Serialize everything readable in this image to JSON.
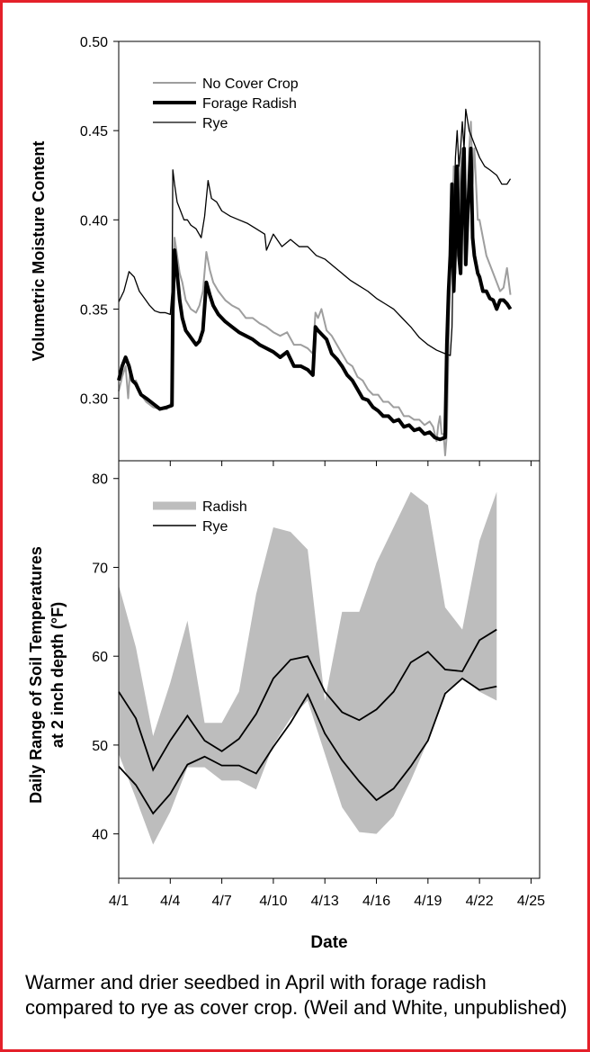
{
  "caption": "Warmer and drier seedbed in April with forage radish compared to rye as cover crop. (Weil and White, unpublished)",
  "colors": {
    "frame": "#e4202a",
    "no_cover": "#9e9e9e",
    "radish_band": "#bdbdbd",
    "line": "#000000"
  },
  "chart_data": [
    {
      "type": "line",
      "xlabel": "Date",
      "ylabel": "Volumetric Moisture Content",
      "ylim": [
        0.265,
        0.5
      ],
      "xlim": [
        0,
        24.5
      ],
      "yticks": [
        "0.30",
        "0.35",
        "0.40",
        "0.45",
        "0.50"
      ],
      "legend": {
        "position": "top-left"
      },
      "grid": false,
      "series": [
        {
          "name": "No Cover Crop",
          "color": "#9e9e9e",
          "width": 2,
          "x": [
            0,
            0.2,
            0.4,
            0.55,
            0.65,
            0.8,
            1.0,
            1.3,
            1.6,
            2.0,
            2.4,
            2.8,
            3.1,
            3.15,
            3.25,
            3.4,
            3.55,
            3.7,
            3.9,
            4.2,
            4.5,
            4.7,
            4.9,
            5.1,
            5.3,
            5.5,
            5.8,
            6.2,
            6.6,
            7.0,
            7.4,
            7.8,
            8.2,
            8.6,
            9.0,
            9.4,
            9.8,
            10.2,
            10.6,
            11.0,
            11.3,
            11.45,
            11.6,
            11.8,
            12.1,
            12.4,
            12.7,
            13.0,
            13.3,
            13.6,
            13.9,
            14.2,
            14.5,
            14.8,
            15.1,
            15.4,
            15.7,
            16.0,
            16.3,
            16.6,
            16.9,
            17.2,
            17.5,
            17.8,
            18.1,
            18.3,
            18.5,
            18.6,
            18.7,
            18.8,
            18.9,
            18.95,
            19.0,
            19.1,
            19.2,
            19.3,
            19.4,
            19.5,
            19.6,
            19.7,
            19.8,
            19.9,
            20.0,
            20.1,
            20.2,
            20.3,
            20.4,
            20.5,
            20.6,
            20.7,
            20.8,
            20.9,
            21.0,
            21.2,
            21.4,
            21.6,
            21.8,
            22.0,
            22.2,
            22.4,
            22.6,
            22.8
          ],
          "y": [
            0.304,
            0.312,
            0.318,
            0.3,
            0.314,
            0.309,
            0.31,
            0.302,
            0.298,
            0.295,
            0.294,
            0.294,
            0.298,
            0.36,
            0.39,
            0.38,
            0.37,
            0.365,
            0.355,
            0.35,
            0.348,
            0.352,
            0.36,
            0.382,
            0.372,
            0.365,
            0.36,
            0.355,
            0.352,
            0.35,
            0.345,
            0.345,
            0.342,
            0.34,
            0.337,
            0.335,
            0.337,
            0.33,
            0.33,
            0.328,
            0.325,
            0.348,
            0.345,
            0.35,
            0.338,
            0.335,
            0.33,
            0.325,
            0.32,
            0.318,
            0.312,
            0.31,
            0.305,
            0.302,
            0.302,
            0.298,
            0.298,
            0.295,
            0.295,
            0.29,
            0.29,
            0.288,
            0.288,
            0.285,
            0.287,
            0.284,
            0.276,
            0.285,
            0.29,
            0.28,
            0.28,
            0.275,
            0.268,
            0.28,
            0.33,
            0.375,
            0.39,
            0.43,
            0.37,
            0.4,
            0.38,
            0.43,
            0.44,
            0.4,
            0.38,
            0.41,
            0.44,
            0.455,
            0.42,
            0.44,
            0.42,
            0.4,
            0.4,
            0.39,
            0.38,
            0.375,
            0.37,
            0.365,
            0.36,
            0.362,
            0.373,
            0.358
          ]
        },
        {
          "name": "Forage Radish",
          "color": "#000000",
          "width": 4,
          "x": [
            0,
            0.2,
            0.4,
            0.6,
            0.8,
            1.0,
            1.3,
            1.6,
            2.0,
            2.4,
            2.8,
            3.1,
            3.15,
            3.25,
            3.4,
            3.55,
            3.7,
            3.9,
            4.2,
            4.5,
            4.7,
            4.9,
            5.1,
            5.3,
            5.5,
            5.8,
            6.2,
            6.6,
            7.0,
            7.4,
            7.8,
            8.2,
            8.6,
            9.0,
            9.4,
            9.8,
            10.2,
            10.6,
            11.0,
            11.3,
            11.45,
            11.6,
            11.8,
            12.1,
            12.4,
            12.7,
            13.0,
            13.3,
            13.6,
            13.9,
            14.2,
            14.5,
            14.8,
            15.1,
            15.4,
            15.7,
            16.0,
            16.3,
            16.6,
            16.9,
            17.2,
            17.5,
            17.8,
            18.1,
            18.4,
            18.7,
            19.0,
            19.1,
            19.2,
            19.3,
            19.4,
            19.5,
            19.6,
            19.7,
            19.8,
            19.9,
            20.0,
            20.1,
            20.2,
            20.3,
            20.4,
            20.5,
            20.6,
            20.7,
            20.8,
            20.9,
            21.0,
            21.2,
            21.4,
            21.6,
            21.8,
            22.0,
            22.2,
            22.4,
            22.6,
            22.8
          ],
          "y": [
            0.31,
            0.318,
            0.323,
            0.318,
            0.31,
            0.308,
            0.302,
            0.3,
            0.297,
            0.294,
            0.295,
            0.296,
            0.35,
            0.383,
            0.37,
            0.355,
            0.345,
            0.338,
            0.334,
            0.33,
            0.332,
            0.338,
            0.365,
            0.358,
            0.352,
            0.347,
            0.343,
            0.34,
            0.337,
            0.335,
            0.333,
            0.33,
            0.328,
            0.326,
            0.323,
            0.326,
            0.318,
            0.318,
            0.316,
            0.313,
            0.34,
            0.338,
            0.336,
            0.333,
            0.325,
            0.322,
            0.318,
            0.313,
            0.31,
            0.305,
            0.3,
            0.299,
            0.295,
            0.293,
            0.29,
            0.29,
            0.287,
            0.288,
            0.284,
            0.285,
            0.282,
            0.283,
            0.28,
            0.281,
            0.278,
            0.277,
            0.278,
            0.33,
            0.36,
            0.38,
            0.42,
            0.36,
            0.39,
            0.43,
            0.38,
            0.37,
            0.42,
            0.44,
            0.375,
            0.4,
            0.42,
            0.44,
            0.39,
            0.38,
            0.375,
            0.37,
            0.368,
            0.36,
            0.36,
            0.356,
            0.355,
            0.35,
            0.355,
            0.355,
            0.353,
            0.35
          ]
        },
        {
          "name": "Rye",
          "color": "#000000",
          "width": 1.3,
          "x": [
            0,
            0.3,
            0.6,
            0.9,
            1.2,
            1.5,
            1.8,
            2.1,
            2.4,
            2.7,
            3.0,
            3.1,
            3.15,
            3.25,
            3.4,
            3.6,
            3.8,
            4.0,
            4.2,
            4.5,
            4.8,
            5.0,
            5.2,
            5.4,
            5.7,
            6.0,
            6.5,
            7.0,
            7.5,
            8.0,
            8.5,
            8.6,
            9.0,
            9.5,
            10.0,
            10.5,
            11.0,
            11.5,
            12.0,
            12.5,
            13.0,
            13.5,
            14.0,
            14.5,
            15.0,
            15.5,
            16.0,
            16.5,
            17.0,
            17.5,
            18.0,
            18.5,
            19.0,
            19.3,
            19.4,
            19.5,
            19.6,
            19.7,
            19.8,
            19.9,
            20.0,
            20.1,
            20.2,
            20.4,
            20.6,
            20.8,
            21.0,
            21.3,
            21.6,
            22.0,
            22.3,
            22.6,
            22.8
          ],
          "y": [
            0.354,
            0.36,
            0.371,
            0.368,
            0.36,
            0.356,
            0.352,
            0.349,
            0.348,
            0.348,
            0.347,
            0.36,
            0.428,
            0.42,
            0.41,
            0.405,
            0.4,
            0.4,
            0.397,
            0.395,
            0.39,
            0.402,
            0.422,
            0.412,
            0.41,
            0.405,
            0.402,
            0.4,
            0.398,
            0.395,
            0.392,
            0.383,
            0.392,
            0.385,
            0.389,
            0.385,
            0.385,
            0.38,
            0.378,
            0.374,
            0.37,
            0.366,
            0.363,
            0.36,
            0.356,
            0.353,
            0.35,
            0.345,
            0.34,
            0.334,
            0.33,
            0.327,
            0.325,
            0.324,
            0.34,
            0.4,
            0.435,
            0.45,
            0.43,
            0.44,
            0.455,
            0.44,
            0.462,
            0.45,
            0.445,
            0.44,
            0.435,
            0.43,
            0.428,
            0.425,
            0.42,
            0.42,
            0.423
          ]
        }
      ]
    },
    {
      "type": "area",
      "xlabel": "Date",
      "ylabel": "Daily Range of Soil Temperatures at 2 inch depth (°F)",
      "ylabel_lines": [
        "Daily Range of Soil Temperatures",
        "at 2 inch depth (°F)"
      ],
      "ylim": [
        35,
        82
      ],
      "xlim": [
        0,
        24.5
      ],
      "yticks": [
        "40",
        "50",
        "60",
        "70",
        "80"
      ],
      "xticks": [
        "4/1",
        "4/4",
        "4/7",
        "4/10",
        "4/13",
        "4/16",
        "4/19",
        "4/22",
        "4/25"
      ],
      "legend": {
        "position": "top-left"
      },
      "grid": false,
      "days": [
        0,
        1,
        2,
        3,
        4,
        5,
        6,
        7,
        8,
        9,
        10,
        11,
        12,
        13,
        14,
        15,
        16,
        17,
        18,
        19,
        20,
        21,
        22
      ],
      "series": [
        {
          "name": "Radish",
          "color": "#bdbdbd",
          "max": [
            68,
            61,
            51,
            57,
            64,
            52.5,
            52.5,
            56,
            67,
            74.5,
            74,
            72,
            55,
            65,
            65,
            70.5,
            74.5,
            78.5,
            77,
            65.5,
            63,
            73,
            78.5
          ],
          "min": [
            49,
            44,
            38.8,
            42.5,
            47.5,
            47.5,
            46,
            46,
            45,
            50,
            53,
            55,
            49,
            43,
            40.2,
            40,
            42,
            46,
            50.5,
            56,
            57.5,
            56,
            55
          ]
        },
        {
          "name": "Rye",
          "color": "#000000",
          "max": [
            56,
            53,
            47.2,
            50.5,
            53.3,
            50.5,
            49.3,
            50.7,
            53.5,
            57.5,
            59.6,
            60,
            56,
            53.7,
            52.8,
            54,
            56,
            59.3,
            60.5,
            58.5,
            58.3,
            61.8,
            63
          ],
          "min": [
            47.6,
            45.5,
            42.3,
            44.5,
            47.8,
            48.7,
            47.7,
            47.7,
            46.8,
            49.8,
            52.5,
            55.7,
            51.3,
            48.3,
            45.9,
            43.8,
            45.1,
            47.6,
            50.5,
            55.8,
            57.5,
            56.2,
            56.6
          ]
        }
      ]
    }
  ]
}
